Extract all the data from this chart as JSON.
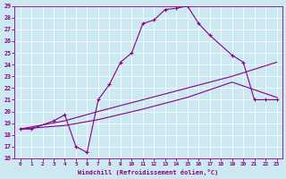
{
  "xlabel": "Windchill (Refroidissement éolien,°C)",
  "bg_color": "#cce8f0",
  "line_color": "#880088",
  "xlim": [
    -0.5,
    23.5
  ],
  "ylim": [
    16,
    29
  ],
  "xticks": [
    0,
    1,
    2,
    3,
    4,
    5,
    6,
    7,
    8,
    9,
    10,
    11,
    12,
    13,
    14,
    15,
    16,
    17,
    18,
    19,
    20,
    21,
    22,
    23
  ],
  "yticks": [
    16,
    17,
    18,
    19,
    20,
    21,
    22,
    23,
    24,
    25,
    26,
    27,
    28,
    29
  ],
  "curve1_x": [
    0,
    1,
    3,
    4,
    5,
    6,
    7,
    8,
    9,
    10,
    11,
    12,
    13,
    14,
    15,
    16,
    17,
    19,
    20,
    21,
    22,
    23
  ],
  "curve1_y": [
    18.5,
    18.5,
    19.2,
    19.7,
    17.0,
    16.5,
    21.0,
    22.3,
    24.2,
    25.0,
    27.5,
    27.8,
    28.7,
    28.8,
    29.0,
    27.5,
    26.5,
    24.8,
    24.2,
    21.0,
    21.0,
    21.0
  ],
  "curve2_x": [
    0,
    4,
    7,
    11,
    15,
    19,
    23
  ],
  "curve2_y": [
    18.5,
    19.2,
    20.0,
    21.0,
    22.0,
    23.0,
    24.2
  ],
  "curve3_x": [
    0,
    4,
    7,
    11,
    15,
    19,
    23
  ],
  "curve3_y": [
    18.5,
    18.8,
    19.3,
    20.2,
    21.2,
    22.5,
    21.2
  ],
  "marker": "+"
}
